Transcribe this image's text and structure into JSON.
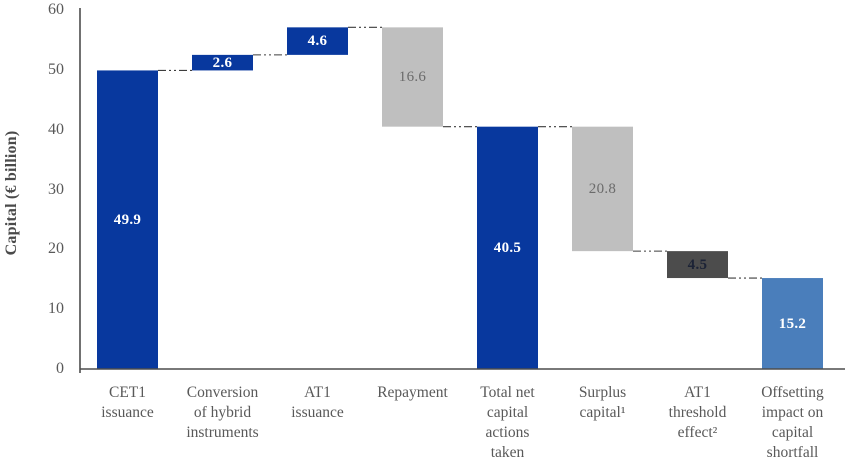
{
  "chart_data": {
    "type": "bar",
    "subtype": "waterfall",
    "title": "",
    "xlabel": "",
    "ylabel": "Capital (€ billion)",
    "ylim": [
      0,
      60
    ],
    "yticks": [
      0,
      10,
      20,
      30,
      40,
      50,
      60
    ],
    "grid": false,
    "legend": "none",
    "categories": [
      "CET1 issuance",
      "Conversion of hybrid instruments",
      "AT1 issuance",
      "Repayment",
      "Total net capital actions taken",
      "Surplus capital¹",
      "AT1 threshold effect²",
      "Offsetting impact on capital shortfall"
    ],
    "bars": [
      {
        "name": "CET1 issuance",
        "label_lines": [
          "CET1",
          "issuance"
        ],
        "start": 0,
        "end": 49.9,
        "value": 49.9,
        "value_label": "49.9",
        "color": "dark_blue",
        "value_color": "white",
        "value_bold": true
      },
      {
        "name": "Conversion of hybrid instruments",
        "label_lines": [
          "Conversion",
          "of hybrid",
          "instruments"
        ],
        "start": 49.9,
        "end": 52.5,
        "value": 2.6,
        "value_label": "2.6",
        "color": "dark_blue",
        "value_color": "white",
        "value_bold": true
      },
      {
        "name": "AT1 issuance",
        "label_lines": [
          "AT1",
          "issuance"
        ],
        "start": 52.5,
        "end": 57.1,
        "value": 4.6,
        "value_label": "4.6",
        "color": "dark_blue",
        "value_color": "white",
        "value_bold": true
      },
      {
        "name": "Repayment",
        "label_lines": [
          "Repayment"
        ],
        "start": 57.1,
        "end": 40.5,
        "value": -16.6,
        "value_label": "16.6",
        "color": "light_gray",
        "value_color": "gray_text",
        "value_bold": false
      },
      {
        "name": "Total net capital actions taken",
        "label_lines": [
          "Total net",
          "capital",
          "actions",
          "taken"
        ],
        "start": 0,
        "end": 40.5,
        "value": 40.5,
        "value_label": "40.5",
        "color": "dark_blue",
        "value_color": "white",
        "value_bold": true
      },
      {
        "name": "Surplus capital¹",
        "label_lines": [
          "Surplus",
          "capital¹"
        ],
        "start": 40.5,
        "end": 19.7,
        "value": -20.8,
        "value_label": "20.8",
        "color": "light_gray",
        "value_color": "gray_text",
        "value_bold": false
      },
      {
        "name": "AT1 threshold effect²",
        "label_lines": [
          "AT1",
          "threshold",
          "effect²"
        ],
        "start": 19.7,
        "end": 15.2,
        "value": -4.5,
        "value_label": "4.5",
        "color": "dark_gray",
        "value_color": "navy_text",
        "value_bold": true
      },
      {
        "name": "Offsetting impact on capital shortfall",
        "label_lines": [
          "Offsetting",
          "impact on",
          "capital",
          "shortfall"
        ],
        "start": 0,
        "end": 15.2,
        "value": 15.2,
        "value_label": "15.2",
        "color": "mid_blue",
        "value_color": "white",
        "value_bold": true
      }
    ],
    "connector_levels": [
      49.9,
      52.5,
      57.1,
      40.5,
      40.5,
      19.7,
      15.2
    ]
  },
  "colors": {
    "dark_blue": "#08389e",
    "mid_blue": "#4a7ebb",
    "light_gray": "#bfbfbf",
    "dark_gray": "#4c4c4c",
    "white": "#ffffff",
    "gray_text": "#6b6b6b",
    "navy_text": "#1c2336",
    "axis": "#4d4d4d",
    "tick_text": "#595959",
    "connector": "#3d3d3d"
  }
}
